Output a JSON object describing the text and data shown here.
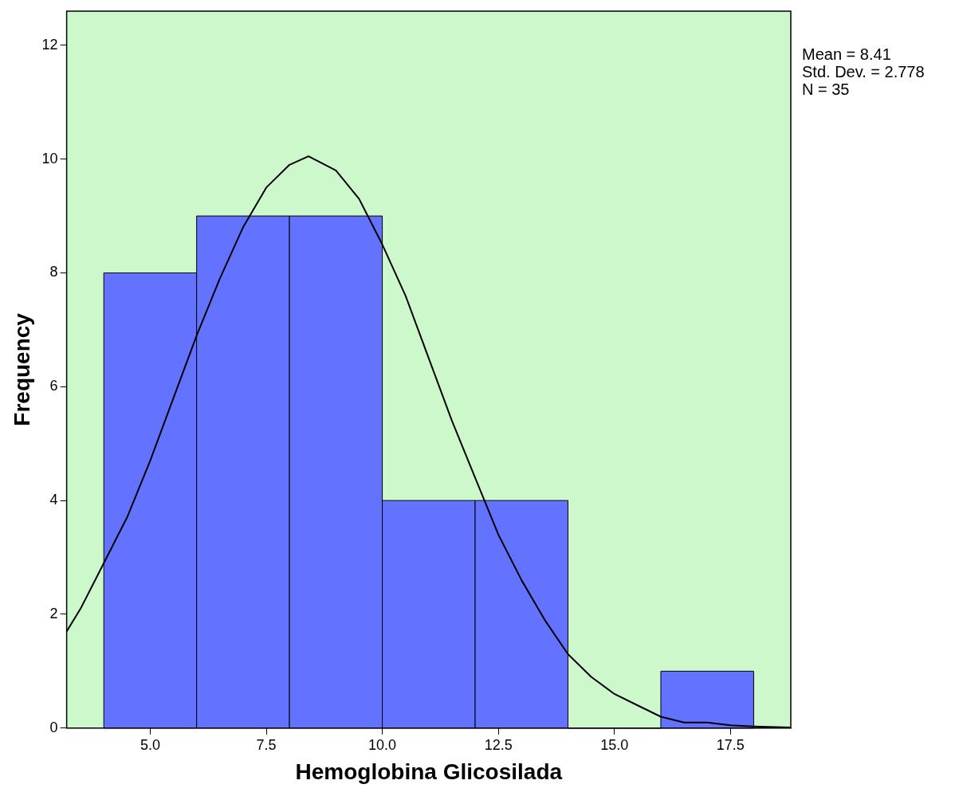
{
  "chart_data": {
    "type": "histogram",
    "xlabel": "Hemoglobina Glicosilada",
    "ylabel": "Frequency",
    "bins": [
      4,
      6,
      8,
      10,
      12,
      14,
      16,
      18
    ],
    "values": [
      8,
      9,
      9,
      4,
      4,
      0,
      1
    ],
    "color": "#6373ff",
    "series": [
      {
        "type": "line",
        "color": "#000000",
        "marker": "none",
        "x": [
          3.2,
          3.5,
          4,
          4.5,
          5,
          5.5,
          6,
          6.5,
          7,
          7.5,
          8,
          8.41,
          9,
          9.5,
          10,
          10.5,
          11,
          11.5,
          12,
          12.5,
          13,
          13.5,
          14,
          14.5,
          15,
          15.5,
          16,
          16.5,
          17,
          17.5,
          18,
          18.8
        ],
        "values": [
          1.7,
          2.1,
          2.9,
          3.7,
          4.7,
          5.8,
          6.9,
          7.9,
          8.8,
          9.5,
          9.9,
          10.05,
          9.8,
          9.3,
          8.5,
          7.6,
          6.5,
          5.4,
          4.4,
          3.4,
          2.6,
          1.9,
          1.3,
          0.9,
          0.6,
          0.4,
          0.2,
          0.1,
          0.1,
          0.05,
          0.03,
          0.01
        ]
      }
    ],
    "xlim": [
      3.2,
      18.8
    ],
    "xticks": [
      {
        "value": 5,
        "label": "5.0"
      },
      {
        "value": 7.5,
        "label": "7.5"
      },
      {
        "value": 10,
        "label": "10.0"
      },
      {
        "value": 12.5,
        "label": "12.5"
      },
      {
        "value": 15,
        "label": "15.0"
      },
      {
        "value": 17.5,
        "label": "17.5"
      }
    ],
    "ylim": [
      0,
      12.6
    ],
    "yticks": [
      0,
      2,
      4,
      6,
      8,
      10,
      12
    ],
    "grid": false,
    "legend": false,
    "annotations": [
      "Mean = 8.41",
      "Std. Dev. = 2.778",
      "N = 35"
    ]
  }
}
